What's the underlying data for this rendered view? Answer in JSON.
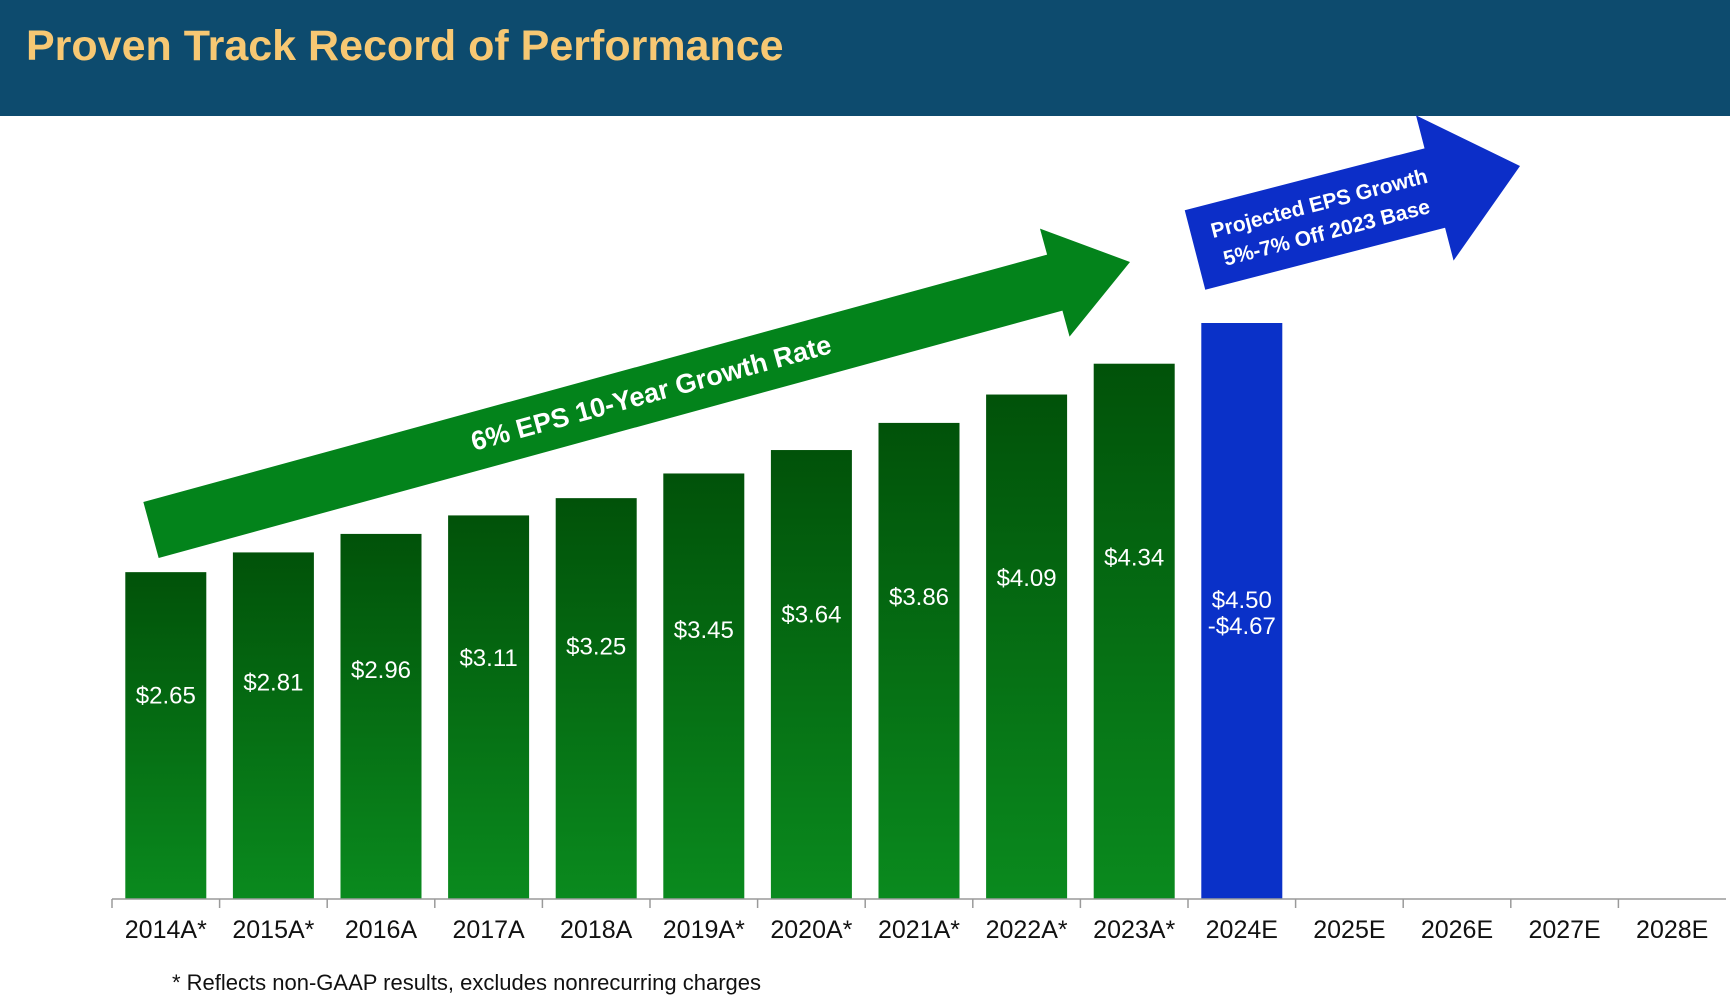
{
  "header": {
    "title": "Proven Track Record of Performance"
  },
  "footnote": "* Reflects non-GAAP results, excludes nonrecurring charges",
  "colors": {
    "header_bg": "#0d4b6e",
    "title_text": "#f7c873",
    "actual_bar_top": "#015209",
    "actual_bar_bottom": "#0a8a1e",
    "projected_bar": "#0a31c8",
    "growth_arrow": "#03831b",
    "projected_arrow": "#0c2ec8"
  },
  "chart_data": {
    "type": "bar",
    "categories": [
      "2014A*",
      "2015A*",
      "2016A",
      "2017A",
      "2018A",
      "2019A*",
      "2020A*",
      "2021A*",
      "2022A*",
      "2023A*",
      "2024E",
      "2025E",
      "2026E",
      "2027E",
      "2028E"
    ],
    "values": [
      2.65,
      2.81,
      2.96,
      3.11,
      3.25,
      3.45,
      3.64,
      3.86,
      4.09,
      4.34,
      4.67,
      null,
      null,
      null,
      null
    ],
    "value_labels": [
      "$2.65",
      "$2.81",
      "$2.96",
      "$3.11",
      "$3.25",
      "$3.45",
      "$3.64",
      "$3.86",
      "$4.09",
      "$4.34",
      "$4.50\n-$4.67",
      "",
      "",
      "",
      ""
    ],
    "series_kind": [
      "actual",
      "actual",
      "actual",
      "actual",
      "actual",
      "actual",
      "actual",
      "actual",
      "actual",
      "actual",
      "projected",
      "",
      "",
      "",
      ""
    ],
    "ylim": [
      0,
      4.67
    ],
    "grid": false,
    "annotations": [
      {
        "text": "6% EPS 10-Year Growth Rate",
        "kind": "growth-arrow"
      },
      {
        "text": "Projected EPS Growth\n5%-7% Off 2023 Base",
        "kind": "projected-arrow"
      }
    ]
  }
}
